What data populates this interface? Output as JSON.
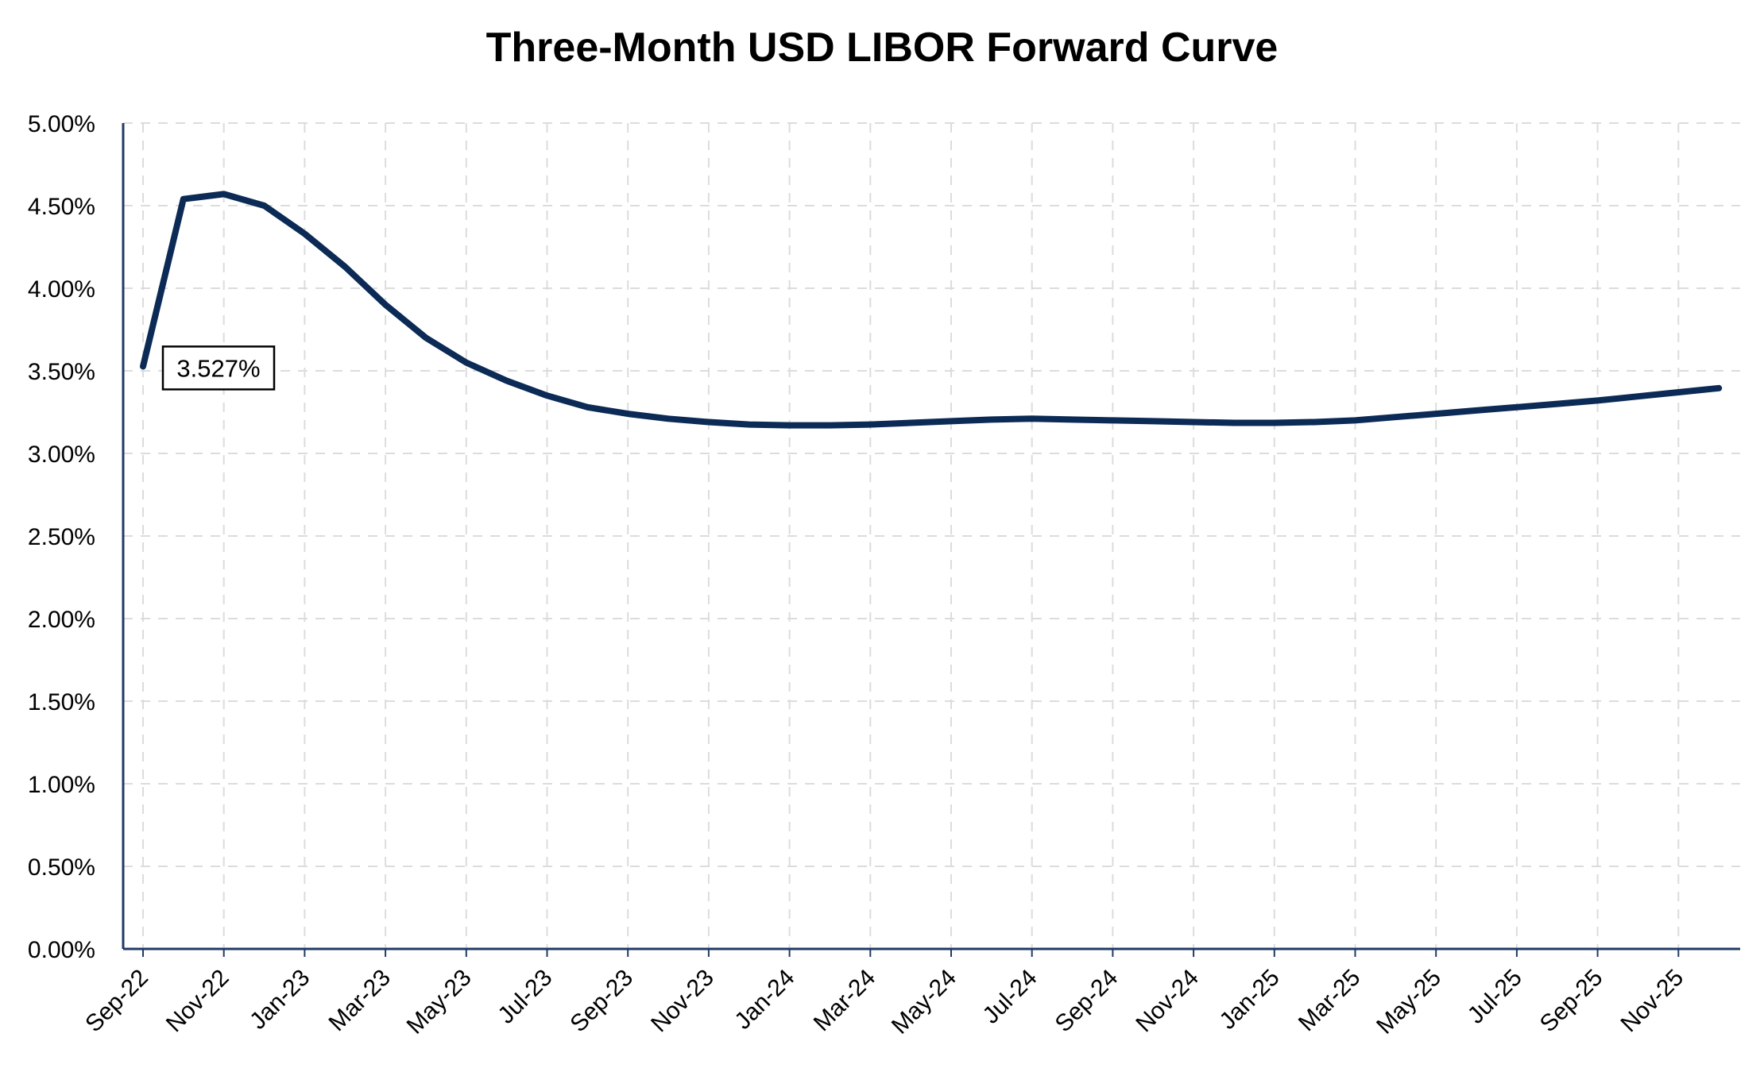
{
  "chart_data": {
    "type": "line",
    "title": "Three-Month USD LIBOR Forward Curve",
    "xlabel": "",
    "ylabel": "",
    "ylim": [
      0,
      5
    ],
    "y_ticks": [
      "0.00%",
      "0.50%",
      "1.00%",
      "1.50%",
      "2.00%",
      "2.50%",
      "3.00%",
      "3.50%",
      "4.00%",
      "4.50%",
      "5.00%"
    ],
    "y_tick_values": [
      0,
      0.5,
      1,
      1.5,
      2,
      2.5,
      3,
      3.5,
      4,
      4.5,
      5
    ],
    "x_ticks": [
      "Sep-22",
      "Nov-22",
      "Jan-23",
      "Mar-23",
      "May-23",
      "Jul-23",
      "Sep-23",
      "Nov-23",
      "Jan-24",
      "Mar-24",
      "May-24",
      "Jul-24",
      "Sep-24",
      "Nov-24",
      "Jan-25",
      "Mar-25",
      "May-25",
      "Jul-25",
      "Sep-25",
      "Nov-25"
    ],
    "grid": true,
    "series": [
      {
        "color": "#0b2a55",
        "x": [
          "2022-09",
          "2022-10",
          "2022-11",
          "2022-12",
          "2023-01",
          "2023-02",
          "2023-03",
          "2023-04",
          "2023-05",
          "2023-06",
          "2023-07",
          "2023-08",
          "2023-09",
          "2023-10",
          "2023-11",
          "2023-12",
          "2024-01",
          "2024-02",
          "2024-03",
          "2024-04",
          "2024-05",
          "2024-06",
          "2024-07",
          "2024-08",
          "2024-09",
          "2024-10",
          "2024-11",
          "2024-12",
          "2025-01",
          "2025-02",
          "2025-03",
          "2025-04",
          "2025-05",
          "2025-06",
          "2025-07",
          "2025-08",
          "2025-09",
          "2025-10",
          "2025-11",
          "2025-12"
        ],
        "values": [
          3.527,
          4.54,
          4.57,
          4.5,
          4.33,
          4.13,
          3.9,
          3.7,
          3.55,
          3.44,
          3.35,
          3.28,
          3.24,
          3.21,
          3.19,
          3.175,
          3.17,
          3.17,
          3.175,
          3.185,
          3.195,
          3.205,
          3.21,
          3.205,
          3.2,
          3.195,
          3.19,
          3.185,
          3.185,
          3.19,
          3.2,
          3.22,
          3.24,
          3.26,
          3.28,
          3.3,
          3.32,
          3.345,
          3.37,
          3.395
        ]
      }
    ],
    "annotations": [
      {
        "text": "3.527%",
        "series_index": 0,
        "point_index": 0
      }
    ]
  }
}
